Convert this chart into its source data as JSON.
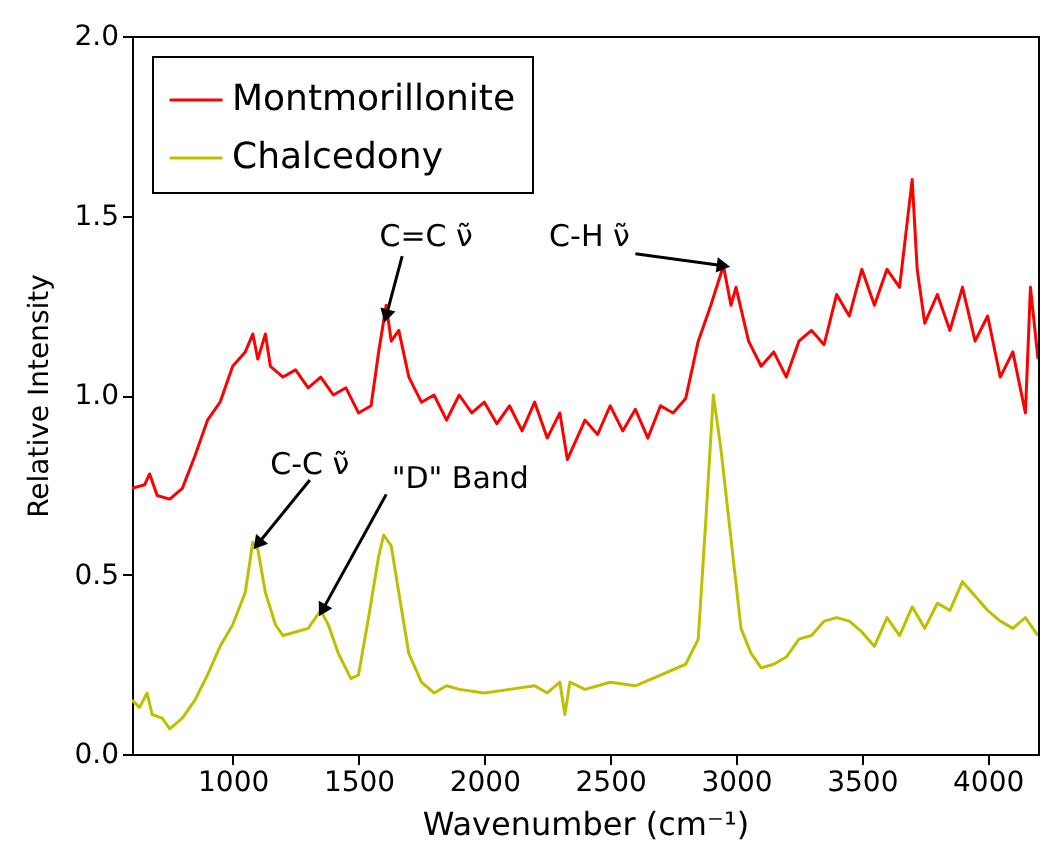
{
  "chart_data": {
    "type": "line",
    "xlabel": "Wavenumber (cm⁻¹)",
    "ylabel": "Relative Intensity",
    "xlim": [
      600,
      4200
    ],
    "xticks": [
      1000,
      1500,
      2000,
      2500,
      3000,
      3500,
      4000
    ],
    "ylim": [
      0,
      2
    ],
    "yticks": [
      {
        "value": 0,
        "label": "0.0"
      },
      {
        "value": 0.5,
        "label": "0.5"
      },
      {
        "value": 1,
        "label": "1.0"
      },
      {
        "value": 1.5,
        "label": "1.5"
      },
      {
        "value": 2,
        "label": "2.0"
      }
    ],
    "grid": false,
    "legend": "top left",
    "marker": "none",
    "line_style": "solid",
    "series": [
      {
        "name": "Montmorillonite",
        "color": "#ff0000",
        "x": [
          600,
          650,
          670,
          700,
          750,
          800,
          850,
          900,
          950,
          1000,
          1050,
          1080,
          1100,
          1130,
          1150,
          1200,
          1250,
          1300,
          1350,
          1400,
          1450,
          1500,
          1550,
          1580,
          1610,
          1630,
          1660,
          1700,
          1750,
          1800,
          1850,
          1900,
          1950,
          2000,
          2050,
          2100,
          2150,
          2200,
          2250,
          2300,
          2330,
          2400,
          2450,
          2500,
          2550,
          2600,
          2650,
          2700,
          2750,
          2800,
          2850,
          2900,
          2950,
          2980,
          3000,
          3050,
          3100,
          3150,
          3200,
          3250,
          3300,
          3350,
          3400,
          3450,
          3500,
          3550,
          3600,
          3650,
          3700,
          3720,
          3750,
          3800,
          3850,
          3900,
          3950,
          4000,
          4050,
          4100,
          4150,
          4170,
          4200
        ],
        "values": [
          0.74,
          0.75,
          0.78,
          0.72,
          0.71,
          0.74,
          0.83,
          0.93,
          0.98,
          1.08,
          1.12,
          1.17,
          1.1,
          1.17,
          1.08,
          1.05,
          1.07,
          1.02,
          1.05,
          1.0,
          1.02,
          0.95,
          0.97,
          1.12,
          1.25,
          1.15,
          1.18,
          1.05,
          0.98,
          1.0,
          0.93,
          1.0,
          0.95,
          0.98,
          0.92,
          0.97,
          0.9,
          0.98,
          0.88,
          0.95,
          0.82,
          0.93,
          0.89,
          0.97,
          0.9,
          0.96,
          0.88,
          0.97,
          0.95,
          0.99,
          1.15,
          1.25,
          1.36,
          1.25,
          1.3,
          1.15,
          1.08,
          1.12,
          1.05,
          1.15,
          1.18,
          1.14,
          1.28,
          1.22,
          1.35,
          1.25,
          1.35,
          1.3,
          1.6,
          1.35,
          1.2,
          1.28,
          1.18,
          1.3,
          1.15,
          1.22,
          1.05,
          1.12,
          0.95,
          1.3,
          1.1
        ]
      },
      {
        "name": "Chalcedony",
        "color": "#bfbf00",
        "x": [
          600,
          630,
          660,
          680,
          720,
          750,
          800,
          850,
          900,
          950,
          1000,
          1050,
          1080,
          1100,
          1130,
          1170,
          1200,
          1250,
          1300,
          1350,
          1380,
          1420,
          1470,
          1500,
          1540,
          1580,
          1600,
          1630,
          1660,
          1700,
          1750,
          1800,
          1850,
          1900,
          2000,
          2100,
          2200,
          2250,
          2300,
          2320,
          2340,
          2400,
          2500,
          2600,
          2700,
          2800,
          2850,
          2880,
          2910,
          2940,
          2980,
          3020,
          3060,
          3100,
          3150,
          3200,
          3250,
          3300,
          3350,
          3400,
          3450,
          3500,
          3550,
          3600,
          3650,
          3700,
          3750,
          3800,
          3850,
          3900,
          3950,
          4000,
          4050,
          4100,
          4150,
          4200
        ],
        "values": [
          0.15,
          0.13,
          0.17,
          0.11,
          0.1,
          0.07,
          0.1,
          0.15,
          0.22,
          0.3,
          0.36,
          0.45,
          0.59,
          0.57,
          0.45,
          0.36,
          0.33,
          0.34,
          0.35,
          0.4,
          0.36,
          0.28,
          0.21,
          0.22,
          0.38,
          0.55,
          0.61,
          0.58,
          0.45,
          0.28,
          0.2,
          0.17,
          0.19,
          0.18,
          0.17,
          0.18,
          0.19,
          0.17,
          0.2,
          0.11,
          0.2,
          0.18,
          0.2,
          0.19,
          0.22,
          0.25,
          0.32,
          0.65,
          1.0,
          0.85,
          0.6,
          0.35,
          0.28,
          0.24,
          0.25,
          0.27,
          0.32,
          0.33,
          0.37,
          0.38,
          0.37,
          0.34,
          0.3,
          0.38,
          0.33,
          0.41,
          0.35,
          0.42,
          0.4,
          0.48,
          0.44,
          0.4,
          0.37,
          0.35,
          0.38,
          0.33
        ]
      }
    ],
    "annotations": [
      {
        "text": "C=C ν̃",
        "x": 1610,
        "y": 1.22
      },
      {
        "text": "C-H ν̃",
        "x": 2950,
        "y": 1.36
      },
      {
        "text": "C-C ν̃",
        "x": 1100,
        "y": 0.585
      },
      {
        "text": "\"D\" Band",
        "x": 1356,
        "y": 0.4
      }
    ]
  }
}
